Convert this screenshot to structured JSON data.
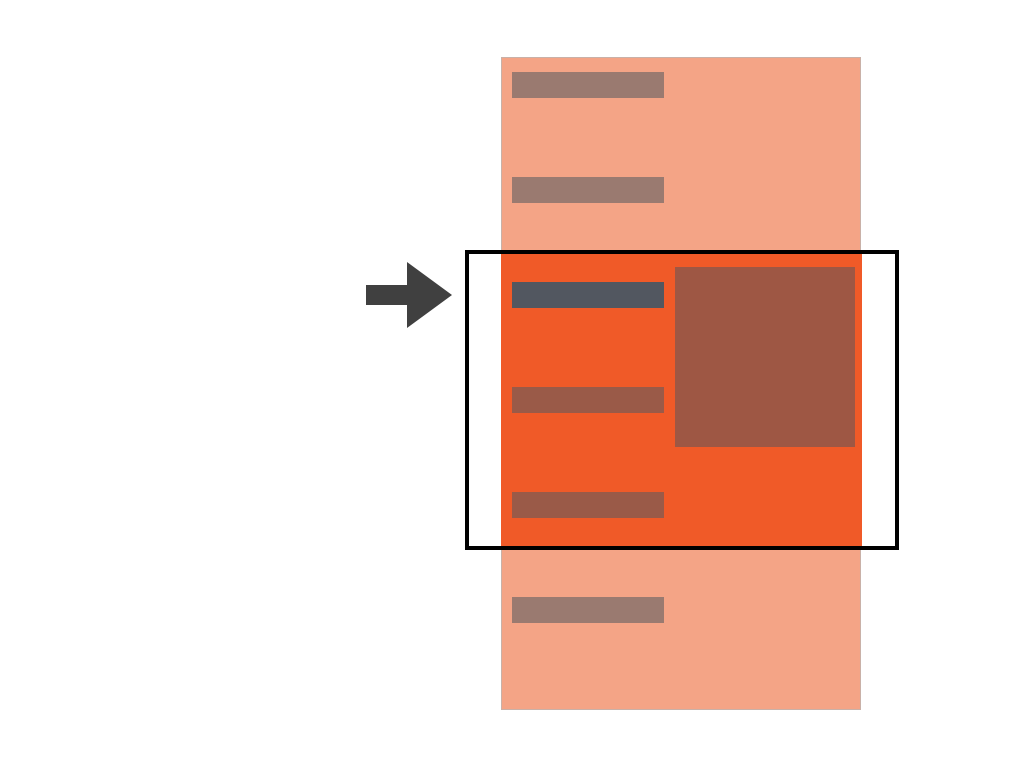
{
  "diagram": {
    "icons": {
      "pointer": "right-arrow-icon"
    },
    "colors": {
      "panel": "#f4a486",
      "highlight_band": "#f05a28",
      "row_muted": "#9a7a70",
      "row_band": "#9a5a48",
      "row_active": "#525760",
      "detail_block": "#9e5744",
      "frame": "#000000",
      "arrow": "#404040"
    }
  }
}
